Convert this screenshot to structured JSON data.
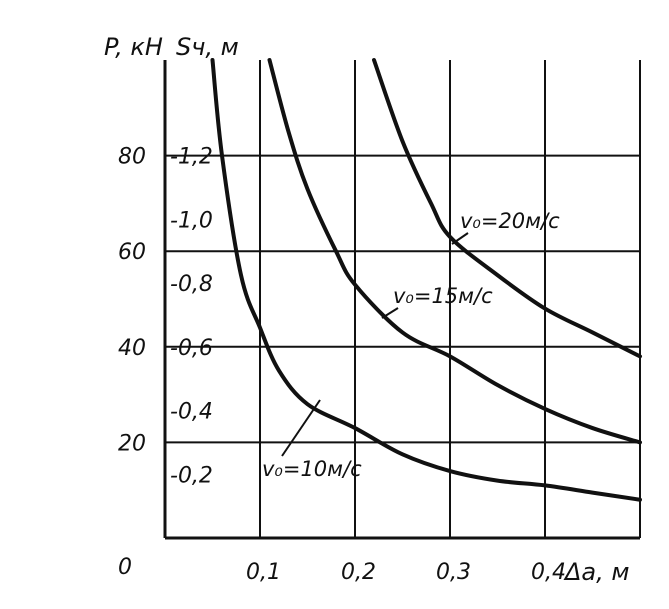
{
  "chart_data": {
    "type": "line",
    "title": "",
    "x_label": "Δa, м",
    "y_label_left": "P, кН",
    "y_label_right": "Sч, м",
    "x_range": [
      0,
      0.5
    ],
    "y_range": [
      0,
      100
    ],
    "y2_range": [
      0,
      1.5
    ],
    "grid": true,
    "origin_label": "0",
    "x_ticks": [
      {
        "value": 0.1,
        "label": "0,1"
      },
      {
        "value": 0.2,
        "label": "0,2"
      },
      {
        "value": 0.3,
        "label": "0,3"
      },
      {
        "value": 0.4,
        "label": "0,4"
      }
    ],
    "y_ticks": [
      {
        "value": 20,
        "label": "20"
      },
      {
        "value": 40,
        "label": "40"
      },
      {
        "value": 60,
        "label": "60"
      },
      {
        "value": 80,
        "label": "80"
      }
    ],
    "y2_ticks": [
      {
        "value": 0.2,
        "label": "-0,2"
      },
      {
        "value": 0.4,
        "label": "-0,4"
      },
      {
        "value": 0.6,
        "label": "-0,6"
      },
      {
        "value": 0.8,
        "label": "-0,8"
      },
      {
        "value": 1.0,
        "label": "-1,0"
      },
      {
        "value": 1.2,
        "label": "-1,2"
      }
    ],
    "series": [
      {
        "name": "v0=10м/с",
        "label": "v₀=10м/с",
        "x": [
          0.05,
          0.06,
          0.08,
          0.1,
          0.12,
          0.15,
          0.2,
          0.25,
          0.3,
          0.35,
          0.4,
          0.45,
          0.5
        ],
        "y": [
          100,
          80,
          55,
          44,
          35,
          28,
          23,
          17.5,
          14,
          12,
          11,
          9.5,
          8
        ]
      },
      {
        "name": "v0=15м/с",
        "label": "v₀=15м/с",
        "x": [
          0.11,
          0.13,
          0.15,
          0.18,
          0.2,
          0.25,
          0.3,
          0.35,
          0.4,
          0.45,
          0.5
        ],
        "y": [
          100,
          85,
          73,
          60,
          53,
          43,
          38,
          32,
          27,
          23,
          20
        ]
      },
      {
        "name": "v0=20м/с",
        "label": "v₀=20м/с",
        "x": [
          0.22,
          0.25,
          0.28,
          0.3,
          0.35,
          0.4,
          0.45,
          0.5
        ],
        "y": [
          100,
          83,
          70,
          63,
          55,
          48,
          43,
          38
        ]
      }
    ]
  }
}
